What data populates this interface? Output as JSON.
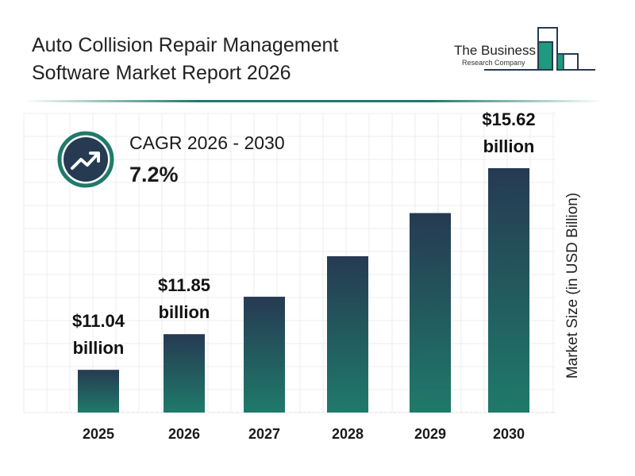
{
  "header": {
    "title_line1": "Auto Collision Repair Management",
    "title_line2": "Software Market Report 2026"
  },
  "logo": {
    "line1": "The Business",
    "line2": "Research Company"
  },
  "cagr": {
    "label": "CAGR 2026 - 2030",
    "value": "7.2%",
    "icon": "trend-up-arrow-icon"
  },
  "colors": {
    "bar_top": "#263a52",
    "bar_bottom": "#1f7a6a",
    "accent": "#1f7a6a",
    "icon_bg": "#263a52"
  },
  "chart_data": {
    "type": "bar",
    "title": "Auto Collision Repair Management Software Market Report 2026",
    "categories": [
      "2025",
      "2026",
      "2027",
      "2028",
      "2029",
      "2030"
    ],
    "values": [
      11.04,
      11.85,
      12.7,
      13.62,
      14.6,
      15.62
    ],
    "data_labels": [
      {
        "index": 0,
        "line1": "$11.04",
        "line2": "billion"
      },
      {
        "index": 1,
        "line1": "$11.85",
        "line2": "billion"
      },
      {
        "index": 5,
        "line1": "$15.62",
        "line2": "billion"
      }
    ],
    "xlabel": "",
    "ylabel": "Market Size (in USD Billion)",
    "grid": true,
    "legend": "none"
  }
}
